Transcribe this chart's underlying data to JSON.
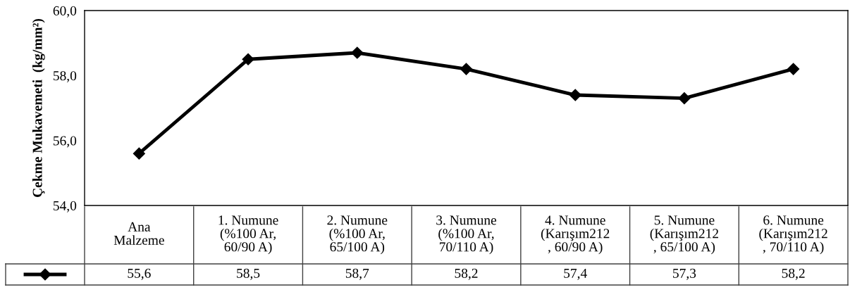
{
  "chart_data": {
    "type": "line",
    "ylabel": "Çekme Mukavemeti  (kg/mm²)",
    "categories": [
      "Ana\nMalzeme",
      "1. Numune\n(%100 Ar,\n60/90 A)",
      "2. Numune\n(%100 Ar,\n65/100 A)",
      "3. Numune\n(%100 Ar,\n70/110 A)",
      "4. Numune\n(Karışım212\n, 60/90 A)",
      "5. Numune\n(Karışım212\n, 65/100 A)",
      "6. Numune\n(Karışım212\n, 70/110 A)"
    ],
    "series": [
      {
        "color": "#000000",
        "values": [
          55.6,
          58.5,
          58.7,
          58.2,
          57.4,
          57.3,
          58.2
        ],
        "value_labels": [
          "55,6",
          "58,5",
          "58,7",
          "58,2",
          "57,4",
          "57,3",
          "58,2"
        ]
      }
    ],
    "ylim": [
      54,
      60
    ],
    "yticks": [
      {
        "value": 54,
        "label": "54,0"
      },
      {
        "value": 56,
        "label": "56,0"
      },
      {
        "value": 58,
        "label": "58,0"
      },
      {
        "value": 60,
        "label": "60,0"
      }
    ],
    "grid": false,
    "legend": false,
    "marker": "diamond",
    "line_style": "solid"
  }
}
